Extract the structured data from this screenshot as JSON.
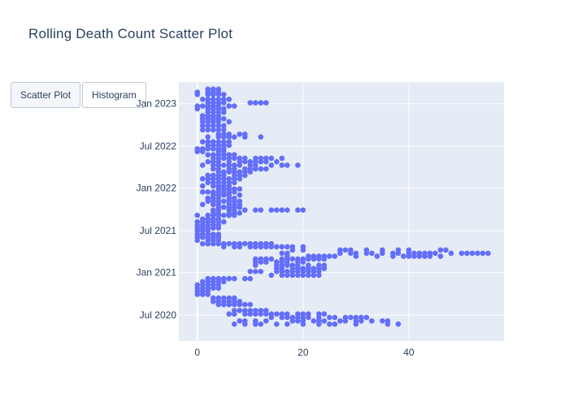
{
  "title": "Rolling Death Count Scatter Plot",
  "buttons": [
    {
      "label": "Scatter Plot",
      "active": true
    },
    {
      "label": "Histogram",
      "active": false
    }
  ],
  "colors": {
    "marker": "#636efa",
    "plot_bg": "#e5ecf6",
    "grid": "#ffffff",
    "text": "#2a3f5f"
  },
  "chart_data": {
    "type": "scatter",
    "title": "Rolling Death Count Scatter Plot",
    "xlabel": "",
    "ylabel": "",
    "xlim": [
      -3.5,
      58
    ],
    "ylim": [
      "2020-03-10",
      "2023-04-05"
    ],
    "x_ticks": [
      0,
      20,
      40
    ],
    "y_ticks": [
      {
        "date": "2020-07-01",
        "label": "Jul 2020"
      },
      {
        "date": "2021-01-01",
        "label": "Jan 2021"
      },
      {
        "date": "2021-07-01",
        "label": "Jul 2021"
      },
      {
        "date": "2022-01-01",
        "label": "Jan 2022"
      },
      {
        "date": "2022-07-01",
        "label": "Jul 2022"
      },
      {
        "date": "2023-01-01",
        "label": "Jan 2023"
      }
    ],
    "grid": true,
    "points_by_date": [
      [
        "2023-03-05",
        [
          2,
          3,
          4
        ]
      ],
      [
        "2023-02-20",
        [
          0,
          2,
          3,
          4
        ]
      ],
      [
        "2023-02-10",
        [
          0,
          2,
          3,
          4,
          5
        ]
      ],
      [
        "2023-01-20",
        [
          1,
          2,
          3,
          4,
          5,
          6
        ]
      ],
      [
        "2023-01-05",
        [
          2,
          3,
          4,
          5,
          10,
          11,
          12,
          13
        ]
      ],
      [
        "2022-12-22",
        [
          0,
          1,
          2,
          3,
          4,
          6,
          7
        ]
      ],
      [
        "2022-12-10",
        [
          0,
          2,
          3,
          4,
          5
        ]
      ],
      [
        "2022-11-25",
        [
          2,
          3,
          4,
          5
        ]
      ],
      [
        "2022-11-10",
        [
          1,
          2,
          3,
          4
        ]
      ],
      [
        "2022-10-28",
        [
          1,
          2,
          3,
          4,
          5
        ]
      ],
      [
        "2022-10-15",
        [
          1,
          2,
          3,
          4,
          6
        ]
      ],
      [
        "2022-09-28",
        [
          1,
          2,
          3,
          4,
          5
        ]
      ],
      [
        "2022-09-10",
        [
          1,
          2,
          3,
          4,
          5
        ]
      ],
      [
        "2022-08-22",
        [
          4,
          5,
          6,
          8,
          9
        ]
      ],
      [
        "2022-08-10",
        [
          2,
          4,
          5,
          6,
          7,
          9,
          12
        ]
      ],
      [
        "2022-07-20",
        [
          1,
          2,
          3,
          4,
          5,
          6
        ]
      ],
      [
        "2022-07-05",
        [
          2,
          3,
          4,
          5,
          6
        ]
      ],
      [
        "2022-06-20",
        [
          0,
          1,
          2,
          3,
          4,
          5
        ]
      ],
      [
        "2022-06-08",
        [
          0,
          1,
          4,
          5
        ]
      ],
      [
        "2022-05-25",
        [
          2,
          3,
          4,
          5,
          6,
          7
        ]
      ],
      [
        "2022-05-10",
        [
          3,
          4,
          5,
          6,
          7,
          8,
          9,
          11,
          12,
          13,
          14,
          16
        ]
      ],
      [
        "2022-04-25",
        [
          2,
          3,
          4,
          6,
          8,
          9,
          10,
          11,
          12,
          13,
          15
        ]
      ],
      [
        "2022-04-10",
        [
          1,
          3,
          4,
          5,
          6,
          7,
          8,
          10,
          11,
          14,
          16,
          17,
          19
        ]
      ],
      [
        "2022-03-25",
        [
          3,
          4,
          6,
          7,
          9,
          10,
          11,
          12,
          13
        ]
      ],
      [
        "2022-03-12",
        [
          4,
          5,
          6,
          7,
          8,
          9,
          10
        ]
      ],
      [
        "2022-02-25",
        [
          2,
          3,
          4,
          5,
          7,
          8,
          9
        ]
      ],
      [
        "2022-02-10",
        [
          1,
          2,
          3,
          4,
          5,
          6,
          7,
          8
        ]
      ],
      [
        "2022-01-25",
        [
          2,
          3,
          4,
          5,
          6,
          7
        ]
      ],
      [
        "2022-01-10",
        [
          1,
          3,
          4,
          5,
          6
        ]
      ],
      [
        "2021-12-28",
        [
          4,
          5,
          6,
          7,
          8
        ]
      ],
      [
        "2021-12-15",
        [
          1,
          2,
          3,
          4,
          5,
          6,
          7
        ]
      ],
      [
        "2021-12-02",
        [
          3,
          4,
          5,
          6,
          8
        ]
      ],
      [
        "2021-11-18",
        [
          2,
          3,
          4,
          6,
          7
        ]
      ],
      [
        "2021-11-05",
        [
          2,
          3,
          4,
          5,
          6,
          7,
          8
        ]
      ],
      [
        "2021-10-22",
        [
          1,
          3,
          4,
          6,
          7,
          8
        ]
      ],
      [
        "2021-10-10",
        [
          4,
          5,
          6,
          7,
          8
        ]
      ],
      [
        "2021-09-28",
        [
          3,
          4,
          6,
          7,
          9,
          11,
          12,
          14,
          15,
          16,
          17,
          19,
          20
        ]
      ],
      [
        "2021-09-15",
        [
          3,
          4,
          6,
          7,
          8
        ]
      ],
      [
        "2021-09-05",
        [
          0,
          2,
          3,
          4,
          5,
          6,
          7
        ]
      ],
      [
        "2021-08-20",
        [
          1,
          2,
          3,
          4
        ]
      ],
      [
        "2021-08-08",
        [
          0,
          1,
          2,
          3,
          4,
          5
        ]
      ],
      [
        "2021-07-25",
        [
          0,
          1,
          2,
          3,
          4
        ]
      ],
      [
        "2021-07-12",
        [
          0,
          1,
          2,
          3,
          4
        ]
      ],
      [
        "2021-06-30",
        [
          0,
          1,
          2
        ]
      ],
      [
        "2021-06-15",
        [
          0,
          1,
          2,
          3,
          4
        ]
      ],
      [
        "2021-06-02",
        [
          0,
          1,
          2,
          3,
          4
        ]
      ],
      [
        "2021-05-20",
        [
          0,
          2,
          3,
          4
        ]
      ],
      [
        "2021-05-05",
        [
          1,
          2,
          3,
          4,
          5,
          6,
          7,
          8,
          9,
          10,
          11,
          12,
          13,
          14
        ]
      ],
      [
        "2021-04-22",
        [
          5,
          7,
          8,
          10,
          11,
          12,
          13,
          14,
          15,
          16,
          17,
          18,
          20
        ]
      ],
      [
        "2021-04-08",
        [
          18,
          20,
          27,
          28,
          29,
          32,
          35,
          38,
          40,
          46,
          47
        ]
      ],
      [
        "2021-03-25",
        [
          16,
          17,
          27,
          29,
          30,
          32,
          33,
          35,
          37,
          38,
          40,
          41,
          42,
          43,
          44,
          45,
          48,
          50,
          51,
          52,
          53,
          54,
          55
        ]
      ],
      [
        "2021-03-12",
        [
          17,
          21,
          22,
          23,
          24,
          25,
          26,
          30,
          34,
          37,
          39,
          40,
          41,
          42,
          43,
          44,
          46
        ]
      ],
      [
        "2021-02-28",
        [
          11,
          12,
          13,
          14,
          16,
          17,
          18,
          19,
          20,
          21,
          22,
          23,
          24
        ]
      ],
      [
        "2021-02-15",
        [
          11,
          12,
          13,
          15,
          16,
          17,
          19,
          20
        ]
      ],
      [
        "2021-02-01",
        [
          11,
          15,
          16,
          17,
          18,
          19,
          21,
          23,
          24
        ]
      ],
      [
        "2021-01-18",
        [
          15,
          16,
          18,
          19,
          20,
          21,
          22,
          23,
          24
        ]
      ],
      [
        "2021-01-05",
        [
          10,
          11,
          12,
          15,
          16,
          17,
          18,
          19,
          20,
          21,
          22,
          23
        ]
      ],
      [
        "2020-12-20",
        [
          14,
          16,
          17,
          18,
          19,
          20,
          21,
          22,
          23
        ]
      ],
      [
        "2020-12-05",
        [
          2,
          3,
          4,
          5,
          6,
          7,
          9,
          10
        ]
      ],
      [
        "2020-11-22",
        [
          1,
          2,
          3,
          4,
          5
        ]
      ],
      [
        "2020-11-08",
        [
          0,
          1,
          2,
          3,
          4
        ]
      ],
      [
        "2020-10-25",
        [
          0,
          1,
          2,
          3,
          4
        ]
      ],
      [
        "2020-10-12",
        [
          0,
          1,
          2
        ]
      ],
      [
        "2020-09-28",
        [
          0,
          1,
          2
        ]
      ],
      [
        "2020-09-12",
        [
          3,
          4,
          5,
          6,
          7
        ]
      ],
      [
        "2020-08-28",
        [
          3,
          4,
          5,
          6,
          7,
          8
        ]
      ],
      [
        "2020-08-15",
        [
          4,
          5,
          6,
          7,
          8,
          9,
          10
        ]
      ],
      [
        "2020-07-20",
        [
          7,
          8,
          9,
          10,
          11,
          12,
          13
        ]
      ],
      [
        "2020-07-05",
        [
          6,
          7,
          9,
          10,
          11,
          12,
          13,
          14,
          15,
          16,
          17,
          19,
          20,
          21,
          23,
          24
        ]
      ],
      [
        "2020-06-20",
        [
          14,
          16,
          17,
          18,
          19,
          20,
          21,
          23,
          25,
          26,
          28,
          29,
          30,
          31,
          32
        ]
      ],
      [
        "2020-06-05",
        [
          8,
          9,
          11,
          13,
          18,
          19,
          20,
          22,
          23,
          24,
          27,
          28,
          30,
          31,
          33,
          35,
          36
        ]
      ],
      [
        "2020-05-22",
        [
          7,
          9,
          11,
          12,
          15,
          17,
          20,
          23,
          25,
          26,
          30,
          36,
          38
        ]
      ]
    ]
  }
}
